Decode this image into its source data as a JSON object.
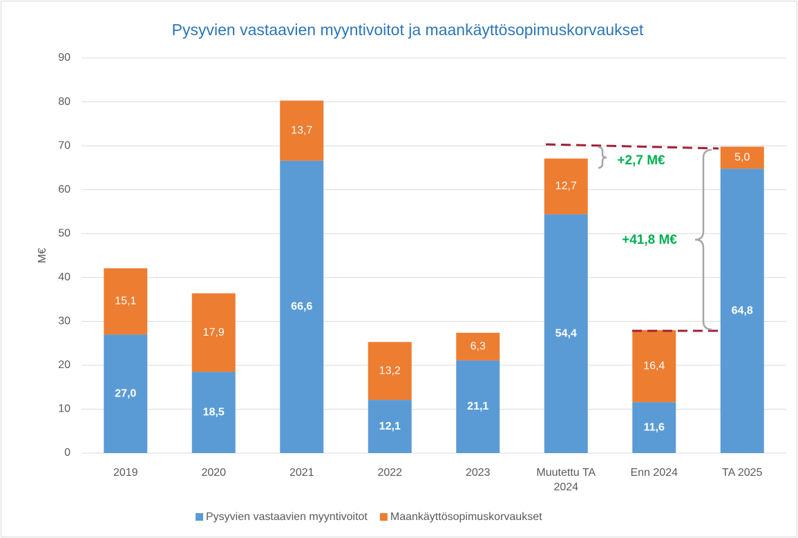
{
  "chart_data": {
    "type": "bar",
    "stacked": true,
    "title": "Pysyvien vastaavien myyntivoitot ja maankäyttösopimuskorvaukset",
    "y_label": "M€",
    "categories": [
      "2019",
      "2020",
      "2021",
      "2022",
      "2023",
      "Muutettu TA 2024",
      "Enn 2024",
      "TA 2025"
    ],
    "series": [
      {
        "name": "Pysyvien vastaavien myyntivoitot",
        "color": "#5b9bd5",
        "values": [
          27.0,
          18.5,
          66.6,
          12.1,
          21.1,
          54.4,
          11.6,
          64.8
        ],
        "value_labels": [
          "27,0",
          "18,5",
          "66,6",
          "12,1",
          "21,1",
          "54,4",
          "11,6",
          "64,8"
        ]
      },
      {
        "name": "Maankäyttösopimuskorvaukset",
        "color": "#ed7d31",
        "values": [
          15.1,
          17.9,
          13.7,
          13.2,
          6.3,
          12.7,
          16.4,
          5.0
        ],
        "value_labels": [
          "15,1",
          "17,9",
          "13,7",
          "13,2",
          "6,3",
          "12,7",
          "16,4",
          "5,0"
        ]
      }
    ],
    "ylim": [
      0,
      90
    ],
    "yticks": [
      0,
      10,
      20,
      30,
      40,
      50,
      60,
      70,
      80,
      90
    ],
    "grid": true,
    "legend": "bottom",
    "annotations": [
      "+2,7 M€",
      "+41,8 M€"
    ]
  }
}
